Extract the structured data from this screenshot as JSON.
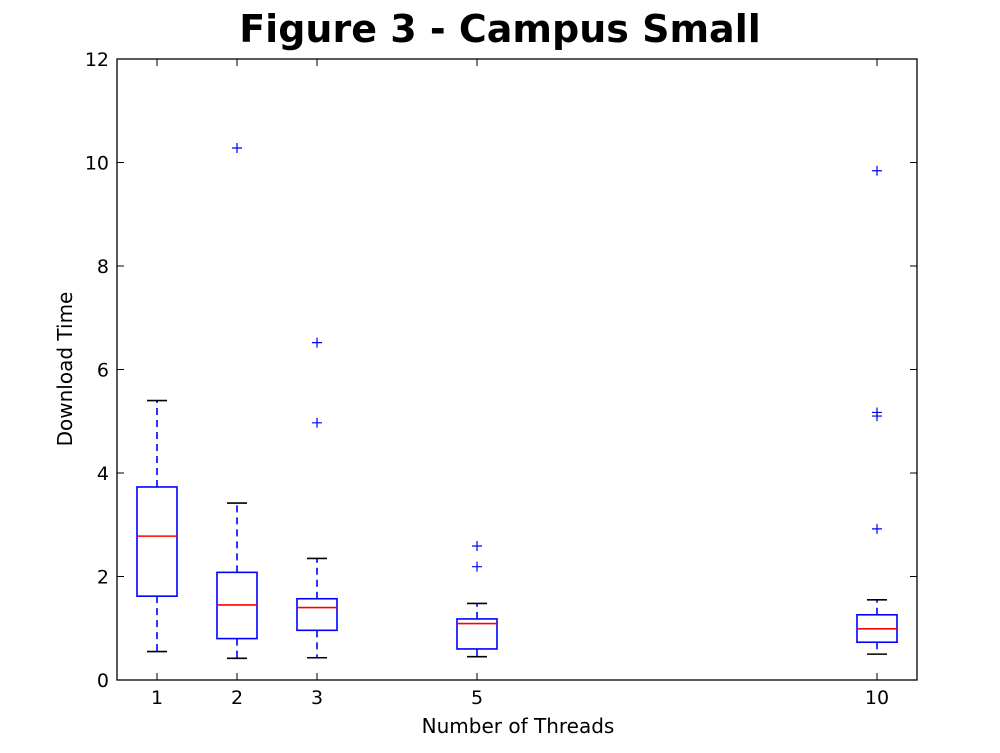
{
  "chart_data": {
    "type": "box",
    "title": "Figure 3 - Campus Small",
    "xlabel": "Number of Threads",
    "ylabel": "Download Time",
    "xlim": [
      0.5,
      10.5
    ],
    "ylim": [
      0,
      12
    ],
    "yticks": [
      0,
      2,
      4,
      6,
      8,
      10,
      12
    ],
    "grid": false,
    "colors": {
      "box": "#0000ff",
      "median": "#ff0000",
      "whisker": "#0000ff",
      "cap": "#000000",
      "flier": "#0000ff"
    },
    "boxes": [
      {
        "x": 1,
        "label": "1",
        "whisker_low": 0.55,
        "q1": 1.62,
        "median": 2.78,
        "q3": 3.73,
        "whisker_high": 5.4,
        "fliers": []
      },
      {
        "x": 2,
        "label": "2",
        "whisker_low": 0.42,
        "q1": 0.8,
        "median": 1.45,
        "q3": 2.08,
        "whisker_high": 3.42,
        "fliers": [
          10.28
        ]
      },
      {
        "x": 3,
        "label": "3",
        "whisker_low": 0.43,
        "q1": 0.96,
        "median": 1.4,
        "q3": 1.57,
        "whisker_high": 2.35,
        "fliers": [
          4.97,
          6.52
        ]
      },
      {
        "x": 5,
        "label": "5",
        "whisker_low": 0.45,
        "q1": 0.6,
        "median": 1.09,
        "q3": 1.18,
        "whisker_high": 1.48,
        "fliers": [
          2.19,
          2.59
        ]
      },
      {
        "x": 10,
        "label": "10",
        "whisker_low": 0.5,
        "q1": 0.73,
        "median": 0.99,
        "q3": 1.26,
        "whisker_high": 1.55,
        "fliers": [
          2.92,
          5.1,
          5.17,
          9.84
        ]
      }
    ]
  }
}
